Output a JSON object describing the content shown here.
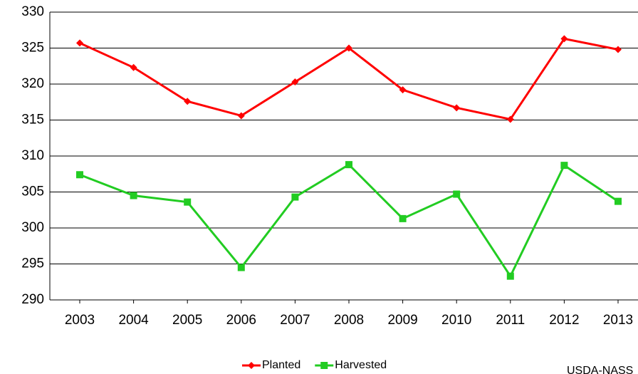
{
  "chart_data": {
    "type": "line",
    "categories": [
      "2003",
      "2004",
      "2005",
      "2006",
      "2007",
      "2008",
      "2009",
      "2010",
      "2011",
      "2012",
      "2013"
    ],
    "series": [
      {
        "name": "Planted",
        "color": "#ff0000",
        "marker": "diamond",
        "values": [
          325.7,
          322.3,
          317.6,
          315.6,
          320.3,
          325.0,
          319.2,
          316.7,
          315.1,
          326.3,
          324.8
        ]
      },
      {
        "name": "Harvested",
        "color": "#22cc22",
        "marker": "square",
        "values": [
          307.4,
          304.5,
          303.6,
          294.5,
          304.3,
          308.8,
          301.3,
          304.7,
          293.3,
          308.7,
          303.7
        ]
      }
    ],
    "ylim": [
      290,
      330
    ],
    "yticks": [
      290,
      295,
      300,
      305,
      310,
      315,
      320,
      325,
      330
    ],
    "grid": true,
    "legend": "bottom",
    "source": "USDA-NASS"
  }
}
